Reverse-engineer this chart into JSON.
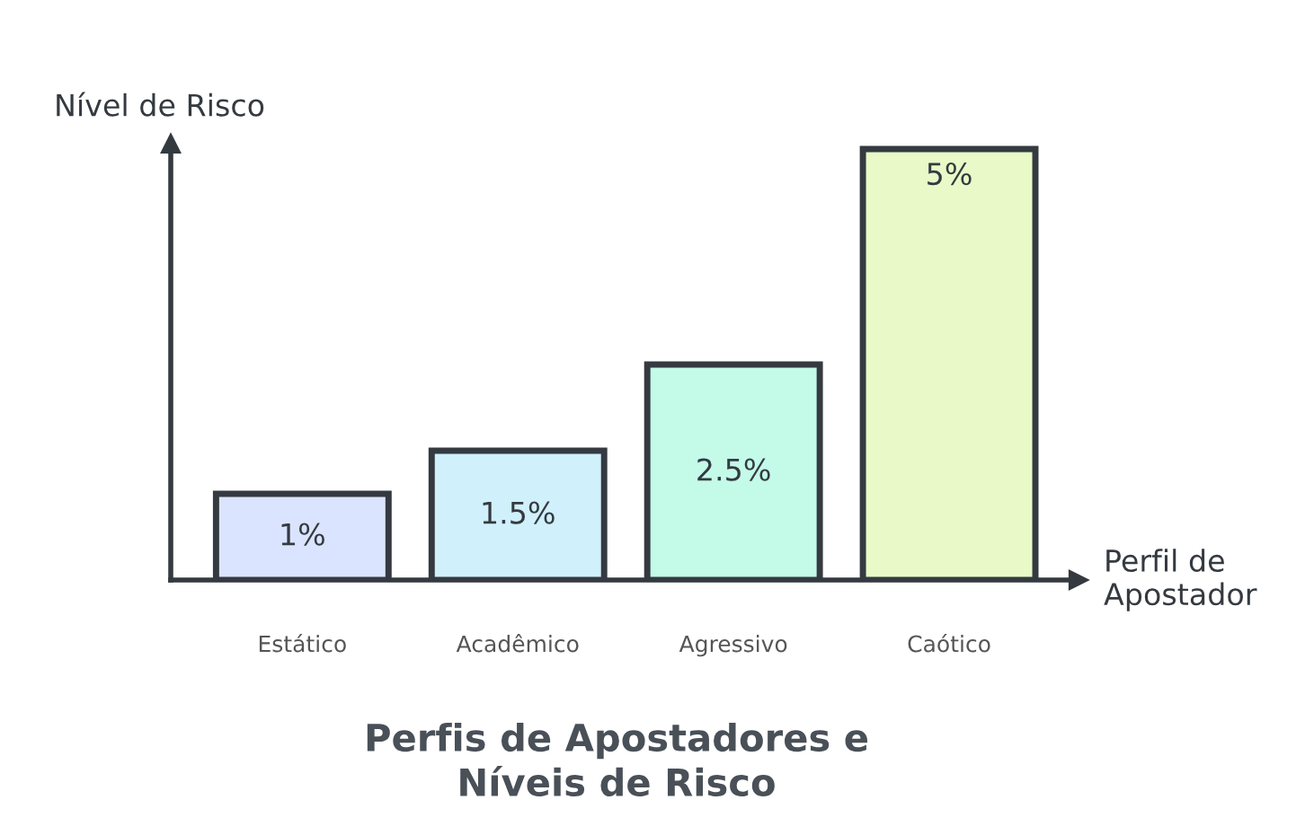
{
  "chart_data": {
    "type": "bar",
    "title": "Perfis de Apostadores e\nNíveis de Risco",
    "xlabel": "Perfil de\nApostador",
    "ylabel": "Nível de Risco",
    "categories": [
      "Estático",
      "Acadêmico",
      "Agressivo",
      "Caótico"
    ],
    "values": [
      1,
      1.5,
      2.5,
      5
    ],
    "colors": [
      "#dbe4ff",
      "#d0f0fb",
      "#c3fae8",
      "#e9fac8"
    ],
    "value_labels": [
      "1%",
      "1.5%",
      "2.5%",
      "5%"
    ],
    "grid": false,
    "legend": false
  }
}
